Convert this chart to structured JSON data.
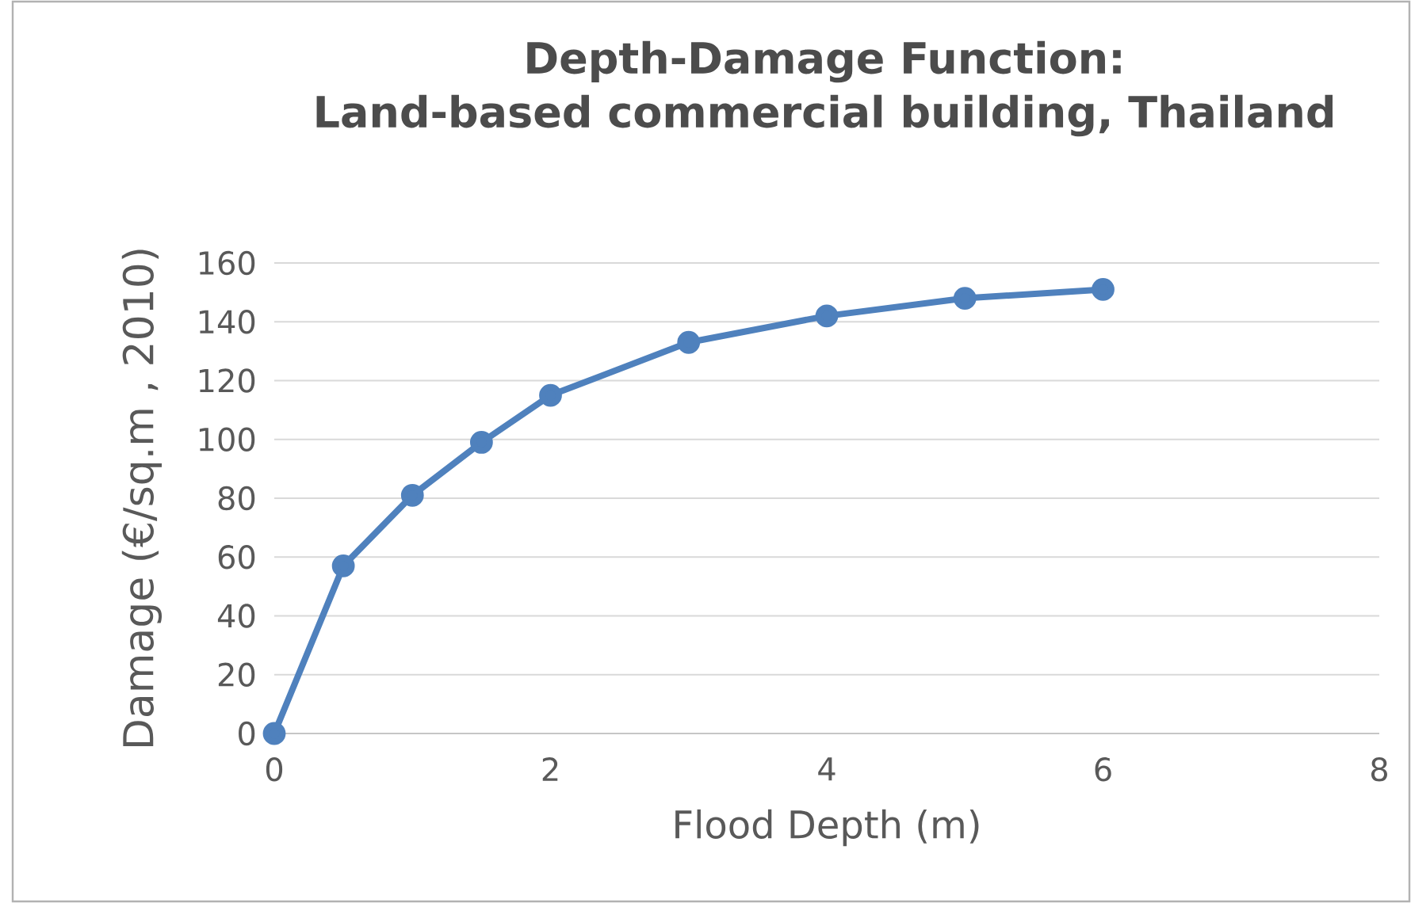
{
  "chart_data": {
    "type": "line",
    "title": "Depth-Damage Function:\nLand-based commercial building, Thailand",
    "xlabel": "Flood Depth (m)",
    "ylabel": "Damage (€/sq.m , 2010)",
    "x": [
      0,
      0.5,
      1,
      1.5,
      2,
      3,
      4,
      5,
      6
    ],
    "series": [
      {
        "color": "#4f81bd",
        "values": [
          0,
          57,
          81,
          99,
          115,
          133,
          142,
          148,
          151
        ]
      }
    ],
    "xlim": [
      0,
      8
    ],
    "xticks": [
      0,
      2,
      4,
      6,
      8
    ],
    "ylim": [
      0,
      160
    ],
    "yticks": [
      0,
      20,
      40,
      60,
      80,
      100,
      120,
      140,
      160
    ],
    "grid": "y",
    "marker": "circle",
    "line_style": "solid"
  }
}
